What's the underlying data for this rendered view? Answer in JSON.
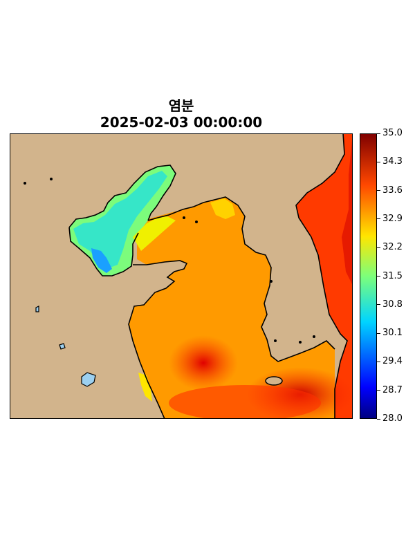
{
  "title": {
    "variable": "염분",
    "datetime": "2025-02-03 00:00:00"
  },
  "map": {
    "land_color": "#d2b48c",
    "coastline_color": "#000000",
    "region_description": "Yellow Sea / Bohai Sea / Korean Peninsula",
    "salinity_pattern": [
      {
        "area": "bohai-northwest",
        "value_class": "low",
        "color": "#3fe6c8"
      },
      {
        "area": "bohai-east",
        "value_class": "mid",
        "color": "#ffe600"
      },
      {
        "area": "yellow-sea-central",
        "value_class": "high",
        "color": "#ff9a00"
      },
      {
        "area": "yellow-sea-south",
        "value_class": "very-high",
        "color": "#e60000"
      },
      {
        "area": "korea-east",
        "value_class": "very-high",
        "color": "#ff3b00"
      }
    ]
  },
  "colorbar": {
    "min": 28.0,
    "max": 35.0,
    "ticks": [
      "35.0",
      "34.3",
      "33.6",
      "32.9",
      "32.2",
      "31.5",
      "30.8",
      "30.1",
      "29.4",
      "28.7",
      "28.0"
    ],
    "colormap": "jet"
  }
}
